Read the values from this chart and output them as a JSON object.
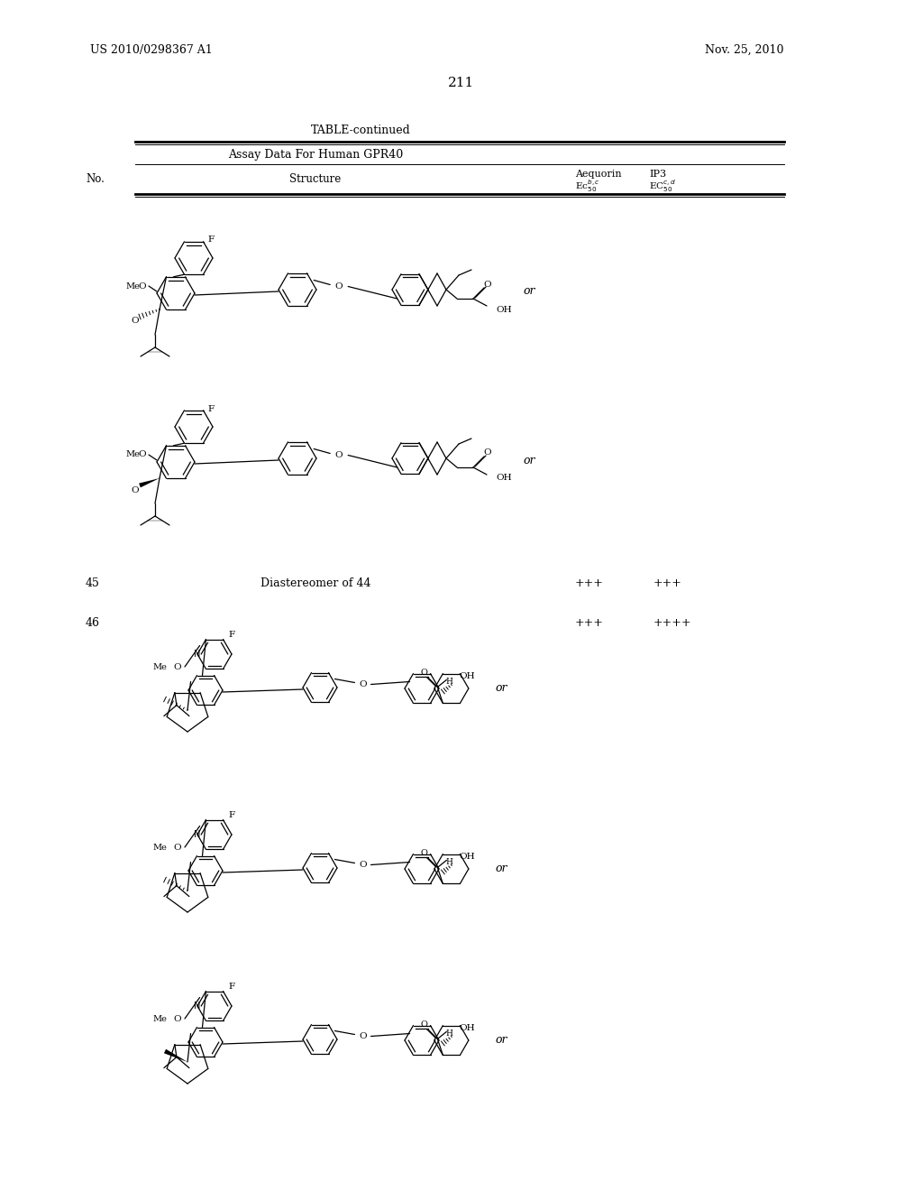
{
  "background_color": "#ffffff",
  "page_number": "211",
  "patent_number": "US 2010/0298367 A1",
  "patent_date": "Nov. 25, 2010",
  "table_title": "TABLE-continued",
  "table_subtitle": "Assay Data For Human GPR40",
  "col_no": "No.",
  "col_structure": "Structure",
  "col_aequorin": "Aequorin",
  "col_ip3": "IP3",
  "col_ec50_aequorin": "Ec",
  "col_ec50_ip3": "EC",
  "row45_no": "45",
  "row45_text": "Diastereomer of 44",
  "row45_aequorin": "+++",
  "row45_ip3": "+++",
  "row46_no": "46",
  "row46_aequorin": "+++",
  "row46_ip3": "++++",
  "or_text": "or"
}
